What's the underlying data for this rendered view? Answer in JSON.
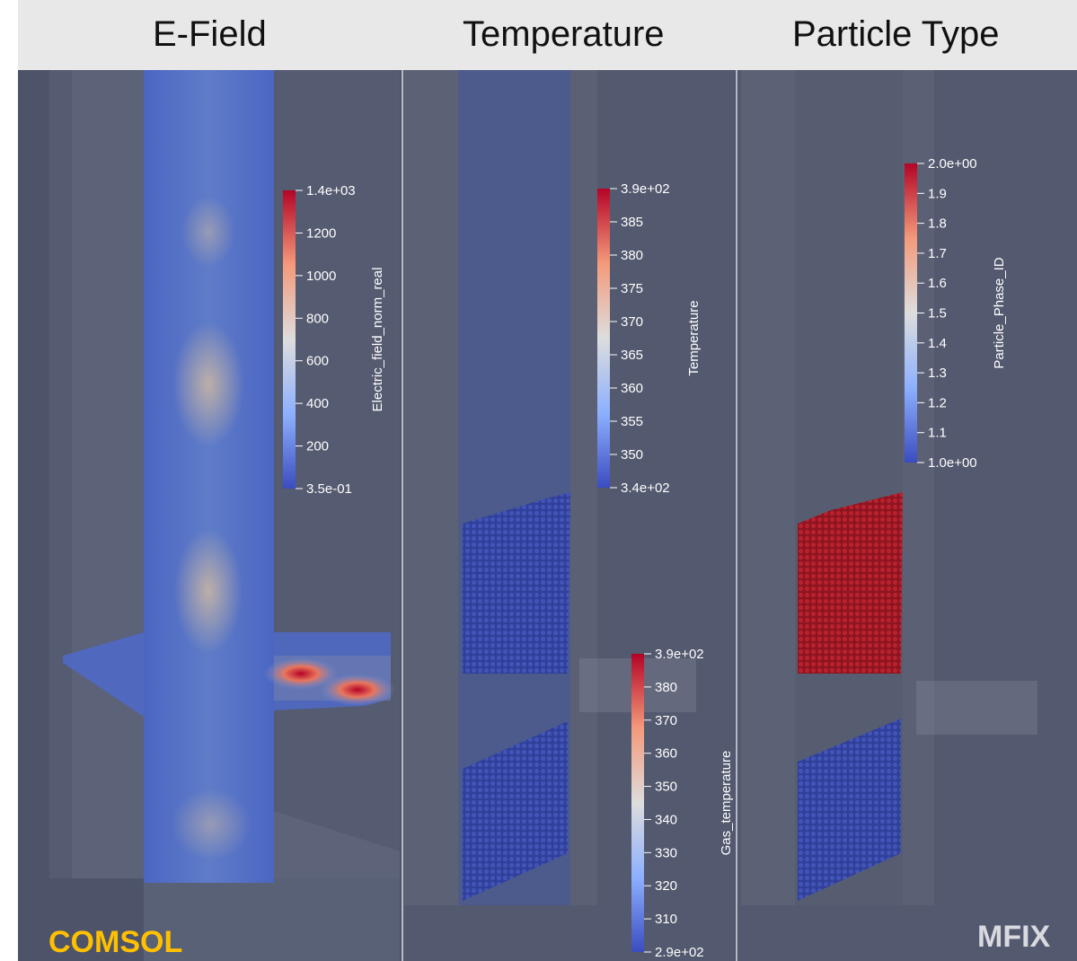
{
  "panels": [
    {
      "title": "E-Field"
    },
    {
      "title": "Temperature"
    },
    {
      "title": "Particle Type"
    }
  ],
  "colorbars": [
    {
      "title": "Electric_field_norm_real",
      "ticks": [
        "1.4e+03",
        "1200",
        "1000",
        "800",
        "600",
        "400",
        "200",
        "3.5e-01"
      ]
    },
    {
      "title": "Temperature",
      "ticks": [
        "3.9e+02",
        "385",
        "380",
        "375",
        "370",
        "365",
        "360",
        "355",
        "350",
        "3.4e+02"
      ]
    },
    {
      "title": "Gas_temperature",
      "ticks": [
        "3.9e+02",
        "380",
        "370",
        "360",
        "350",
        "340",
        "330",
        "320",
        "310",
        "2.9e+02"
      ]
    },
    {
      "title": "Particle_Phase_ID",
      "ticks": [
        "2.0e+00",
        "1.9",
        "1.8",
        "1.7",
        "1.6",
        "1.5",
        "1.4",
        "1.3",
        "1.2",
        "1.1",
        "1.0e+00"
      ]
    }
  ],
  "labels": {
    "left": "COMSOL",
    "right": "MFIX"
  },
  "colors": {
    "background": "#4d5369",
    "header": "#e8e8e8",
    "comsol": "#ffc000",
    "mfix": "#d9d9e0",
    "hot": "#b40426",
    "cold": "#3b4cc0"
  }
}
